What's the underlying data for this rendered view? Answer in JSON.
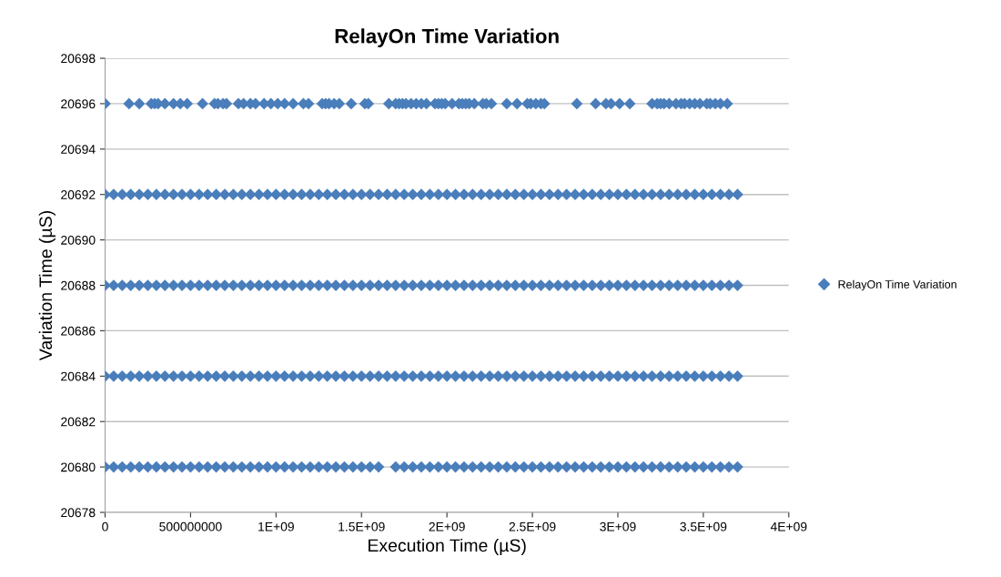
{
  "chart_data": {
    "type": "scatter",
    "title": "RelayOn Time Variation",
    "xlabel": "Execution Time (µS)",
    "ylabel": "Variation Time (µS)",
    "xlim": [
      0,
      4000000000.0
    ],
    "ylim": [
      20678,
      20698
    ],
    "xticks": [
      0,
      {
        "value": 500000000,
        "label": "500000000"
      },
      {
        "value": 1000000000.0,
        "label": "1E+09"
      },
      {
        "value": 1500000000.0,
        "label": "1.5E+09"
      },
      {
        "value": 2000000000.0,
        "label": "2E+09"
      },
      {
        "value": 2500000000.0,
        "label": "2.5E+09"
      },
      {
        "value": 3000000000.0,
        "label": "3E+09"
      },
      {
        "value": 3500000000.0,
        "label": "3.5E+09"
      },
      {
        "value": 4000000000.0,
        "label": "4E+09"
      }
    ],
    "yticks": [
      20678,
      20680,
      20682,
      20684,
      20686,
      20688,
      20690,
      20692,
      20694,
      20696,
      20698
    ],
    "grid": "y",
    "legend": "right",
    "marker": "diamond",
    "series": [
      {
        "name": "RelayOn Time Variation",
        "color": "#4a7ebb",
        "x": [
          0,
          140000000.0,
          200000000.0,
          270000000.0,
          290000000.0,
          310000000.0,
          350000000.0,
          400000000.0,
          440000000.0,
          480000000.0,
          570000000.0,
          640000000.0,
          660000000.0,
          690000000.0,
          710000000.0,
          780000000.0,
          810000000.0,
          850000000.0,
          880000000.0,
          930000000.0,
          970000000.0,
          1010000000.0,
          1050000000.0,
          1100000000.0,
          1160000000.0,
          1190000000.0,
          1270000000.0,
          1290000000.0,
          1310000000.0,
          1340000000.0,
          1370000000.0,
          1440000000.0,
          1520000000.0,
          1540000000.0,
          1660000000.0,
          1700000000.0,
          1720000000.0,
          1740000000.0,
          1760000000.0,
          1790000000.0,
          1820000000.0,
          1850000000.0,
          1880000000.0,
          1930000000.0,
          1950000000.0,
          1970000000.0,
          1990000000.0,
          2030000000.0,
          2070000000.0,
          2090000000.0,
          2110000000.0,
          2130000000.0,
          2160000000.0,
          2210000000.0,
          2230000000.0,
          2260000000.0,
          2350000000.0,
          2410000000.0,
          2470000000.0,
          2490000000.0,
          2520000000.0,
          2550000000.0,
          2570000000.0,
          2760000000.0,
          2870000000.0,
          2930000000.0,
          2960000000.0,
          3010000000.0,
          3070000000.0,
          3200000000.0,
          3230000000.0,
          3250000000.0,
          3270000000.0,
          3300000000.0,
          3340000000.0,
          3370000000.0,
          3390000000.0,
          3420000000.0,
          3450000000.0,
          3480000000.0,
          3520000000.0,
          3540000000.0,
          3570000000.0,
          3600000000.0,
          3640000000.0
        ],
        "values": [
          20696,
          20696,
          20696,
          20696,
          20696,
          20696,
          20696,
          20696,
          20696,
          20696,
          20696,
          20696,
          20696,
          20696,
          20696,
          20696,
          20696,
          20696,
          20696,
          20696,
          20696,
          20696,
          20696,
          20696,
          20696,
          20696,
          20696,
          20696,
          20696,
          20696,
          20696,
          20696,
          20696,
          20696,
          20696,
          20696,
          20696,
          20696,
          20696,
          20696,
          20696,
          20696,
          20696,
          20696,
          20696,
          20696,
          20696,
          20696,
          20696,
          20696,
          20696,
          20696,
          20696,
          20696,
          20696,
          20696,
          20696,
          20696,
          20696,
          20696,
          20696,
          20696,
          20696,
          20696,
          20696,
          20696,
          20696,
          20696,
          20696,
          20696,
          20696,
          20696,
          20696,
          20696,
          20696,
          20696,
          20696,
          20696,
          20696,
          20696,
          20696,
          20696,
          20696,
          20696,
          20696
        ]
      },
      {
        "color": "#4a7ebb",
        "x": [
          0,
          50000000.0,
          100000000.0,
          150000000.0,
          200000000.0,
          250000000.0,
          300000000.0,
          350000000.0,
          400000000.0,
          450000000.0,
          500000000.0,
          550000000.0,
          600000000.0,
          650000000.0,
          700000000.0,
          750000000.0,
          800000000.0,
          850000000.0,
          900000000.0,
          950000000.0,
          1000000000.0,
          1050000000.0,
          1100000000.0,
          1150000000.0,
          1200000000.0,
          1250000000.0,
          1300000000.0,
          1350000000.0,
          1400000000.0,
          1450000000.0,
          1500000000.0,
          1550000000.0,
          1600000000.0,
          1650000000.0,
          1700000000.0,
          1750000000.0,
          1800000000.0,
          1850000000.0,
          1900000000.0,
          1950000000.0,
          2000000000.0,
          2050000000.0,
          2100000000.0,
          2150000000.0,
          2200000000.0,
          2250000000.0,
          2300000000.0,
          2350000000.0,
          2400000000.0,
          2450000000.0,
          2500000000.0,
          2550000000.0,
          2600000000.0,
          2650000000.0,
          2700000000.0,
          2750000000.0,
          2800000000.0,
          2850000000.0,
          2900000000.0,
          2950000000.0,
          3000000000.0,
          3050000000.0,
          3100000000.0,
          3150000000.0,
          3200000000.0,
          3250000000.0,
          3300000000.0,
          3350000000.0,
          3400000000.0,
          3450000000.0,
          3500000000.0,
          3550000000.0,
          3600000000.0,
          3650000000.0,
          3700000000.0
        ],
        "values": [
          20692,
          20692,
          20692,
          20692,
          20692,
          20692,
          20692,
          20692,
          20692,
          20692,
          20692,
          20692,
          20692,
          20692,
          20692,
          20692,
          20692,
          20692,
          20692,
          20692,
          20692,
          20692,
          20692,
          20692,
          20692,
          20692,
          20692,
          20692,
          20692,
          20692,
          20692,
          20692,
          20692,
          20692,
          20692,
          20692,
          20692,
          20692,
          20692,
          20692,
          20692,
          20692,
          20692,
          20692,
          20692,
          20692,
          20692,
          20692,
          20692,
          20692,
          20692,
          20692,
          20692,
          20692,
          20692,
          20692,
          20692,
          20692,
          20692,
          20692,
          20692,
          20692,
          20692,
          20692,
          20692,
          20692,
          20692,
          20692,
          20692,
          20692,
          20692,
          20692,
          20692,
          20692,
          20692
        ]
      },
      {
        "color": "#4a7ebb",
        "x": [
          0,
          50000000.0,
          100000000.0,
          150000000.0,
          200000000.0,
          250000000.0,
          300000000.0,
          350000000.0,
          400000000.0,
          450000000.0,
          500000000.0,
          550000000.0,
          600000000.0,
          650000000.0,
          700000000.0,
          750000000.0,
          800000000.0,
          850000000.0,
          900000000.0,
          950000000.0,
          1000000000.0,
          1050000000.0,
          1100000000.0,
          1150000000.0,
          1200000000.0,
          1250000000.0,
          1300000000.0,
          1350000000.0,
          1400000000.0,
          1450000000.0,
          1500000000.0,
          1550000000.0,
          1600000000.0,
          1650000000.0,
          1700000000.0,
          1750000000.0,
          1800000000.0,
          1850000000.0,
          1900000000.0,
          1950000000.0,
          2000000000.0,
          2050000000.0,
          2100000000.0,
          2150000000.0,
          2200000000.0,
          2250000000.0,
          2300000000.0,
          2350000000.0,
          2400000000.0,
          2450000000.0,
          2500000000.0,
          2550000000.0,
          2600000000.0,
          2650000000.0,
          2700000000.0,
          2750000000.0,
          2800000000.0,
          2850000000.0,
          2900000000.0,
          2950000000.0,
          3000000000.0,
          3050000000.0,
          3100000000.0,
          3150000000.0,
          3200000000.0,
          3250000000.0,
          3300000000.0,
          3350000000.0,
          3400000000.0,
          3450000000.0,
          3500000000.0,
          3550000000.0,
          3600000000.0,
          3650000000.0,
          3700000000.0
        ],
        "values": [
          20688,
          20688,
          20688,
          20688,
          20688,
          20688,
          20688,
          20688,
          20688,
          20688,
          20688,
          20688,
          20688,
          20688,
          20688,
          20688,
          20688,
          20688,
          20688,
          20688,
          20688,
          20688,
          20688,
          20688,
          20688,
          20688,
          20688,
          20688,
          20688,
          20688,
          20688,
          20688,
          20688,
          20688,
          20688,
          20688,
          20688,
          20688,
          20688,
          20688,
          20688,
          20688,
          20688,
          20688,
          20688,
          20688,
          20688,
          20688,
          20688,
          20688,
          20688,
          20688,
          20688,
          20688,
          20688,
          20688,
          20688,
          20688,
          20688,
          20688,
          20688,
          20688,
          20688,
          20688,
          20688,
          20688,
          20688,
          20688,
          20688,
          20688,
          20688,
          20688,
          20688,
          20688,
          20688
        ]
      },
      {
        "color": "#4a7ebb",
        "x": [
          0,
          50000000.0,
          100000000.0,
          150000000.0,
          200000000.0,
          250000000.0,
          300000000.0,
          350000000.0,
          400000000.0,
          450000000.0,
          500000000.0,
          550000000.0,
          600000000.0,
          650000000.0,
          700000000.0,
          750000000.0,
          800000000.0,
          850000000.0,
          900000000.0,
          950000000.0,
          1000000000.0,
          1050000000.0,
          1100000000.0,
          1150000000.0,
          1200000000.0,
          1250000000.0,
          1300000000.0,
          1350000000.0,
          1400000000.0,
          1450000000.0,
          1500000000.0,
          1550000000.0,
          1600000000.0,
          1650000000.0,
          1700000000.0,
          1750000000.0,
          1800000000.0,
          1850000000.0,
          1900000000.0,
          1950000000.0,
          2000000000.0,
          2050000000.0,
          2100000000.0,
          2150000000.0,
          2200000000.0,
          2250000000.0,
          2300000000.0,
          2350000000.0,
          2400000000.0,
          2450000000.0,
          2500000000.0,
          2550000000.0,
          2600000000.0,
          2650000000.0,
          2700000000.0,
          2750000000.0,
          2800000000.0,
          2850000000.0,
          2900000000.0,
          2950000000.0,
          3000000000.0,
          3050000000.0,
          3100000000.0,
          3150000000.0,
          3200000000.0,
          3250000000.0,
          3300000000.0,
          3350000000.0,
          3400000000.0,
          3450000000.0,
          3500000000.0,
          3550000000.0,
          3600000000.0,
          3650000000.0,
          3700000000.0
        ],
        "values": [
          20684,
          20684,
          20684,
          20684,
          20684,
          20684,
          20684,
          20684,
          20684,
          20684,
          20684,
          20684,
          20684,
          20684,
          20684,
          20684,
          20684,
          20684,
          20684,
          20684,
          20684,
          20684,
          20684,
          20684,
          20684,
          20684,
          20684,
          20684,
          20684,
          20684,
          20684,
          20684,
          20684,
          20684,
          20684,
          20684,
          20684,
          20684,
          20684,
          20684,
          20684,
          20684,
          20684,
          20684,
          20684,
          20684,
          20684,
          20684,
          20684,
          20684,
          20684,
          20684,
          20684,
          20684,
          20684,
          20684,
          20684,
          20684,
          20684,
          20684,
          20684,
          20684,
          20684,
          20684,
          20684,
          20684,
          20684,
          20684,
          20684,
          20684,
          20684,
          20684,
          20684,
          20684,
          20684
        ]
      },
      {
        "color": "#4a7ebb",
        "x": [
          0,
          50000000.0,
          100000000.0,
          150000000.0,
          200000000.0,
          250000000.0,
          300000000.0,
          350000000.0,
          400000000.0,
          450000000.0,
          500000000.0,
          550000000.0,
          600000000.0,
          650000000.0,
          700000000.0,
          750000000.0,
          800000000.0,
          850000000.0,
          900000000.0,
          950000000.0,
          1000000000.0,
          1050000000.0,
          1100000000.0,
          1150000000.0,
          1200000000.0,
          1250000000.0,
          1300000000.0,
          1350000000.0,
          1400000000.0,
          1450000000.0,
          1500000000.0,
          1550000000.0,
          1600000000.0,
          1700000000.0,
          1750000000.0,
          1800000000.0,
          1850000000.0,
          1900000000.0,
          1950000000.0,
          2000000000.0,
          2050000000.0,
          2100000000.0,
          2150000000.0,
          2200000000.0,
          2250000000.0,
          2300000000.0,
          2350000000.0,
          2400000000.0,
          2450000000.0,
          2500000000.0,
          2550000000.0,
          2600000000.0,
          2650000000.0,
          2700000000.0,
          2750000000.0,
          2800000000.0,
          2850000000.0,
          2900000000.0,
          2950000000.0,
          3000000000.0,
          3050000000.0,
          3100000000.0,
          3150000000.0,
          3200000000.0,
          3250000000.0,
          3300000000.0,
          3350000000.0,
          3400000000.0,
          3450000000.0,
          3500000000.0,
          3550000000.0,
          3600000000.0,
          3650000000.0,
          3700000000.0
        ],
        "values": [
          20680,
          20680,
          20680,
          20680,
          20680,
          20680,
          20680,
          20680,
          20680,
          20680,
          20680,
          20680,
          20680,
          20680,
          20680,
          20680,
          20680,
          20680,
          20680,
          20680,
          20680,
          20680,
          20680,
          20680,
          20680,
          20680,
          20680,
          20680,
          20680,
          20680,
          20680,
          20680,
          20680,
          20680,
          20680,
          20680,
          20680,
          20680,
          20680,
          20680,
          20680,
          20680,
          20680,
          20680,
          20680,
          20680,
          20680,
          20680,
          20680,
          20680,
          20680,
          20680,
          20680,
          20680,
          20680,
          20680,
          20680,
          20680,
          20680,
          20680,
          20680,
          20680,
          20680,
          20680,
          20680,
          20680,
          20680,
          20680,
          20680,
          20680,
          20680,
          20680,
          20680,
          20680
        ]
      }
    ]
  }
}
